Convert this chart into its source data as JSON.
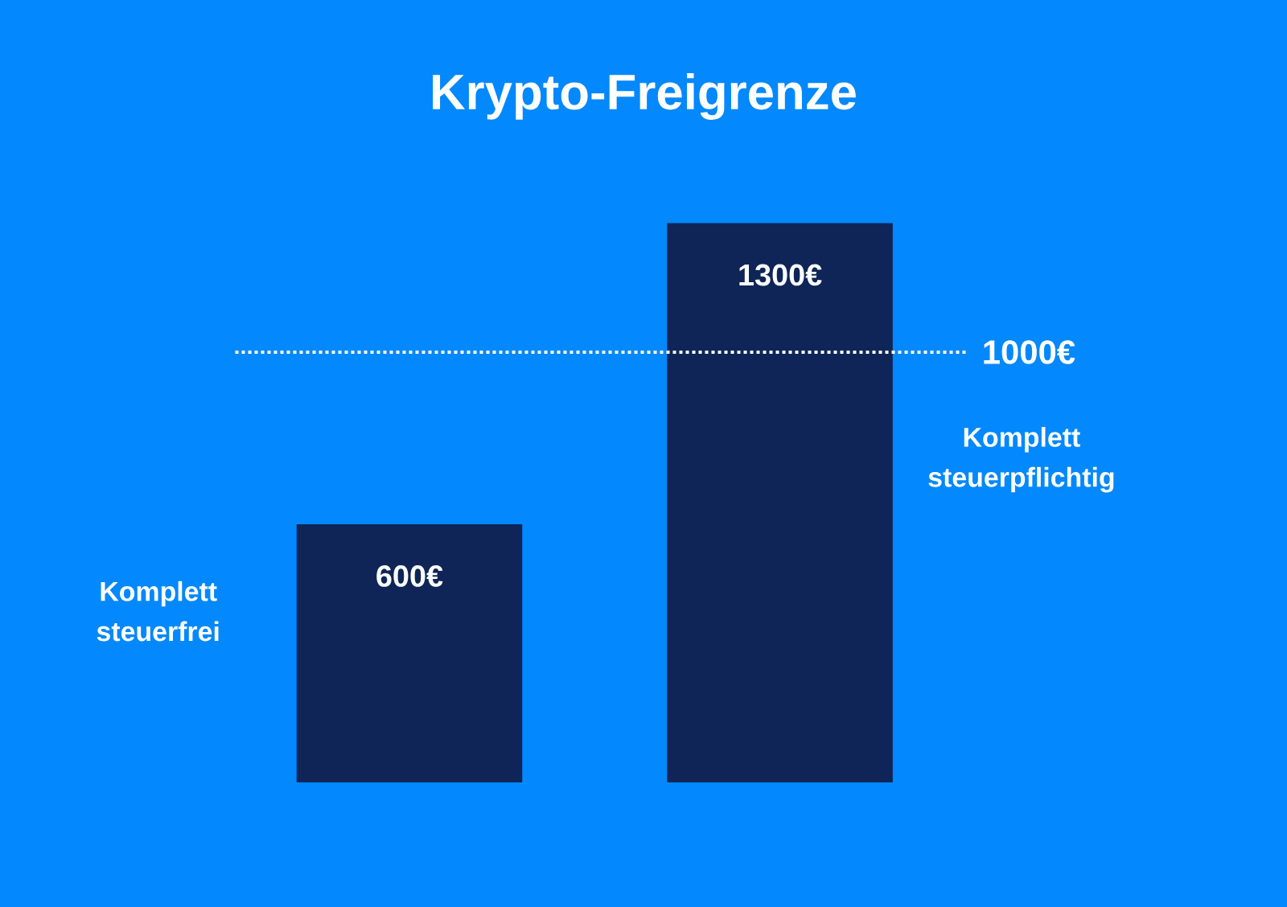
{
  "chart_data": {
    "type": "bar",
    "title": "Krypto-Freigrenze",
    "categories": [
      null,
      null
    ],
    "values": [
      600,
      1300
    ],
    "color": "#0f2557",
    "value_labels": [
      "600€",
      "1300€"
    ],
    "ref_lines": [
      {
        "axis": "y",
        "value": 1000,
        "label": "1000€",
        "color": "#ffffff",
        "line_style": "dotted"
      }
    ],
    "annotations": [
      "Komplett steuerfrei",
      "Komplett steuerpflichtig"
    ]
  }
}
